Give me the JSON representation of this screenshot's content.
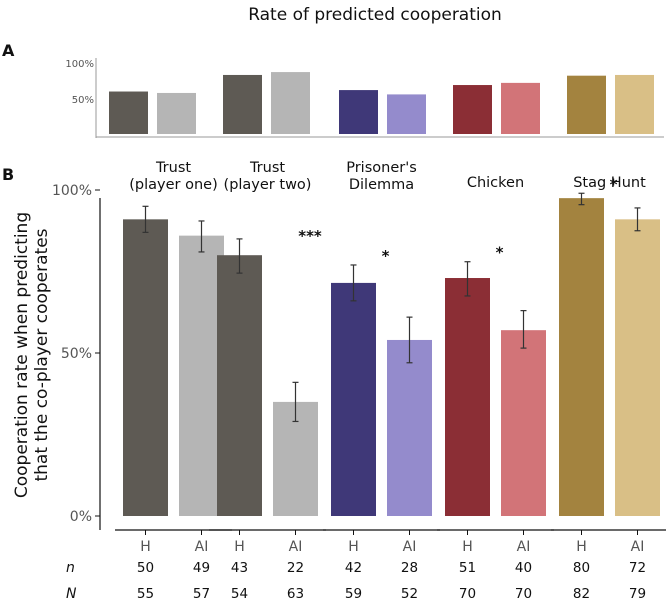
{
  "chart_data": [
    {
      "panel": "A",
      "type": "bar",
      "title": "Rate of predicted cooperation",
      "y_ticks": [
        "100%",
        "50%"
      ],
      "ylim": [
        0,
        100
      ],
      "groups": [
        "Trust (player one)",
        "Trust (player two)",
        "Prisoner's Dilemma",
        "Chicken",
        "Stag Hunt"
      ],
      "series": [
        {
          "name": "H",
          "values": [
            59,
            82,
            61,
            68,
            81
          ],
          "colors": [
            "#5e5a54",
            "#5e5a54",
            "#3f3878",
            "#8b2e35",
            "#a3833f"
          ]
        },
        {
          "name": "AI",
          "values": [
            57,
            86,
            55,
            71,
            82
          ],
          "colors": [
            "#b5b5b5",
            "#b5b5b5",
            "#948bcc",
            "#d27478",
            "#d9bf86"
          ]
        }
      ]
    },
    {
      "panel": "B",
      "type": "bar",
      "ylabel": "Cooperation rate when predicting that the co-player cooperates",
      "y_ticks": [
        {
          "label": "100%",
          "value": 100
        },
        {
          "label": "50%",
          "value": 50
        },
        {
          "label": "0%",
          "value": 0
        }
      ],
      "ylim": [
        0,
        100
      ],
      "facets": [
        {
          "title": [
            "Trust",
            "(player one)"
          ],
          "sig": "",
          "bars": [
            {
              "label": "H",
              "value": 91,
              "err": [
                87,
                95
              ],
              "color": "#5e5a54",
              "n": "50",
              "N": "55"
            },
            {
              "label": "AI",
              "value": 86,
              "err": [
                81,
                90.5
              ],
              "color": "#b5b5b5",
              "n": "49",
              "N": "57"
            }
          ]
        },
        {
          "title": [
            "Trust",
            "(player two)"
          ],
          "sig": "***",
          "bars": [
            {
              "label": "H",
              "value": 80,
              "err": [
                74.5,
                85
              ],
              "color": "#5e5a54",
              "n": "43",
              "N": "54"
            },
            {
              "label": "AI",
              "value": 35,
              "err": [
                29,
                41
              ],
              "color": "#b5b5b5",
              "n": "22",
              "N": "63"
            }
          ]
        },
        {
          "title": [
            "Prisoner's",
            "Dilemma"
          ],
          "sig": "*",
          "bars": [
            {
              "label": "H",
              "value": 71.5,
              "err": [
                66,
                77
              ],
              "color": "#3f3878",
              "n": "42",
              "N": "59"
            },
            {
              "label": "AI",
              "value": 54,
              "err": [
                47,
                61
              ],
              "color": "#948bcc",
              "n": "28",
              "N": "52"
            }
          ]
        },
        {
          "title": [
            "Chicken"
          ],
          "sig": "*",
          "bars": [
            {
              "label": "H",
              "value": 73,
              "err": [
                67.5,
                78
              ],
              "color": "#8b2e35",
              "n": "51",
              "N": "70"
            },
            {
              "label": "AI",
              "value": 57,
              "err": [
                51.5,
                63
              ],
              "color": "#d27478",
              "n": "40",
              "N": "70"
            }
          ]
        },
        {
          "title": [
            "Stag Hunt"
          ],
          "sig": "*",
          "bars": [
            {
              "label": "H",
              "value": 97.5,
              "err": [
                95.5,
                99
              ],
              "color": "#a3833f",
              "n": "80",
              "N": "82"
            },
            {
              "label": "AI",
              "value": 91,
              "err": [
                87.5,
                94.5
              ],
              "color": "#d9bf86",
              "n": "72",
              "N": "79"
            }
          ]
        }
      ],
      "count_labels": {
        "n": "n",
        "N": "N"
      }
    }
  ],
  "panel_labels": {
    "a": "A",
    "b": "B"
  }
}
